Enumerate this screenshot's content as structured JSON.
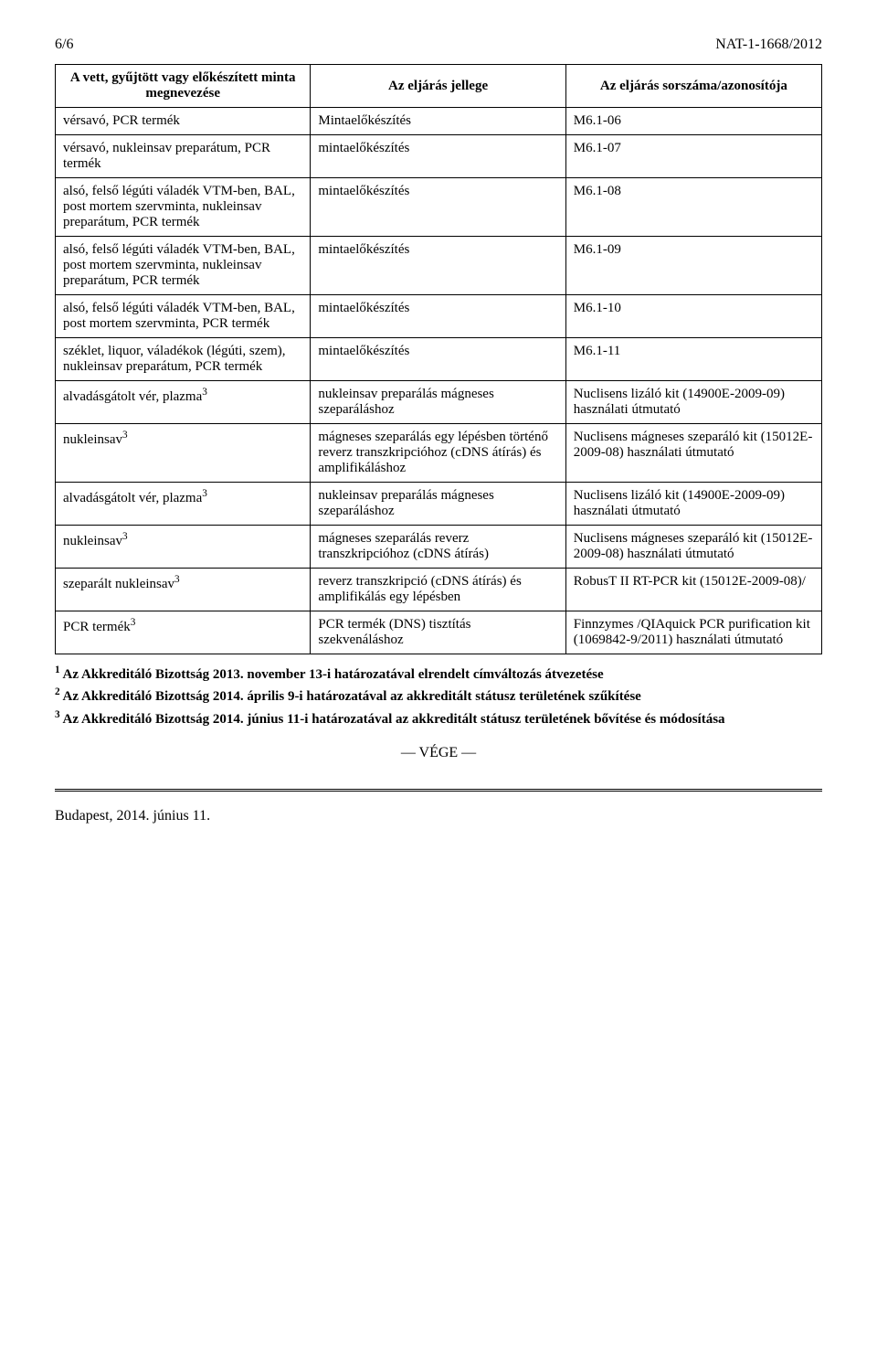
{
  "header": {
    "page_number": "6/6",
    "doc_id": "NAT-1-1668/2012"
  },
  "table": {
    "columns": [
      "A vett, gyűjtött vagy előkészített minta megnevezése",
      "Az eljárás jellege",
      "Az eljárás sorszáma/azonosítója"
    ],
    "rows": [
      {
        "c0": "vérsavó, PCR termék",
        "c1": "Mintaelőkészítés",
        "c2": "M6.1-06",
        "sup0": ""
      },
      {
        "c0": "vérsavó, nukleinsav preparátum, PCR termék",
        "c1": "mintaelőkészítés",
        "c2": "M6.1-07",
        "sup0": ""
      },
      {
        "c0": "alsó, felső légúti váladék VTM-ben, BAL, post mortem szervminta, nukleinsav preparátum, PCR termék",
        "c1": "mintaelőkészítés",
        "c2": "M6.1-08",
        "sup0": ""
      },
      {
        "c0": "alsó, felső légúti váladék VTM-ben, BAL, post mortem szervminta, nukleinsav preparátum, PCR termék",
        "c1": "mintaelőkészítés",
        "c2": "M6.1-09",
        "sup0": ""
      },
      {
        "c0": "alsó, felső légúti váladék VTM-ben, BAL, post mortem szervminta, PCR termék",
        "c1": "mintaelőkészítés",
        "c2": "M6.1-10",
        "sup0": ""
      },
      {
        "c0": "széklet, liquor, váladékok (légúti, szem), nukleinsav preparátum, PCR termék",
        "c1": "mintaelőkészítés",
        "c2": "M6.1-11",
        "sup0": ""
      },
      {
        "c0": "alvadásgátolt vér, plazma",
        "c1": "nukleinsav preparálás mágneses szeparáláshoz",
        "c2": "Nuclisens lizáló kit (14900E-2009-09) használati útmutató",
        "sup0": "3"
      },
      {
        "c0": "nukleinsav",
        "c1": "mágneses szeparálás egy lépésben történő reverz transzkripcióhoz (cDNS átírás) és amplifikáláshoz",
        "c2": "Nuclisens mágneses szeparáló kit (15012E-2009-08) használati útmutató",
        "sup0": "3"
      },
      {
        "c0": "alvadásgátolt vér, plazma",
        "c1": "nukleinsav preparálás mágneses szeparáláshoz",
        "c2": "Nuclisens lizáló kit (14900E-2009-09) használati útmutató",
        "sup0": "3"
      },
      {
        "c0": "nukleinsav",
        "c1": "mágneses szeparálás reverz transzkripcióhoz (cDNS átírás)",
        "c2": "Nuclisens mágneses szeparáló kit (15012E-2009-08) használati útmutató",
        "sup0": "3"
      },
      {
        "c0": "szeparált nukleinsav",
        "c1": "reverz transzkripció (cDNS átírás) és amplifikálás egy lépésben",
        "c2": "RobusT II RT-PCR kit (15012E-2009-08)/",
        "sup0": "3"
      },
      {
        "c0": "PCR termék",
        "c1": "PCR termék (DNS) tisztítás szekvenáláshoz",
        "c2": "Finnzymes /QIAquick PCR purification kit (1069842-9/2011) használati útmutató",
        "sup0": "3"
      }
    ]
  },
  "notes": {
    "n1": {
      "sup": "1",
      "text": " Az Akkreditáló Bizottság 2013. november 13-i határozatával elrendelt címváltozás átvezetése"
    },
    "n2": {
      "sup": "2",
      "text": " Az Akkreditáló Bizottság 2014. április 9-i határozatával az akkreditált státusz területének szűkítése"
    },
    "n3": {
      "sup": "3",
      "text": " Az Akkreditáló Bizottság 2014. június 11-i határozatával az akkreditált státusz területének bővítése és módosítása"
    }
  },
  "vege": "— VÉGE —",
  "footer": "Budapest, 2014. június 11."
}
